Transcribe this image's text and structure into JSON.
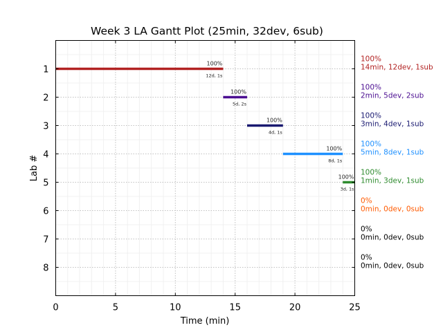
{
  "chart_data": {
    "type": "gantt",
    "title": "Week 3 LA Gantt Plot (25min, 32dev, 6sub)",
    "xlabel": "Time (min)",
    "ylabel": "Lab #",
    "xlim": [
      0,
      25
    ],
    "ylim": [
      9,
      0
    ],
    "xticks": [
      0,
      5,
      10,
      15,
      20,
      25
    ],
    "yticks": [
      1,
      2,
      3,
      4,
      5,
      6,
      7,
      8
    ],
    "grid": true,
    "bars": [
      {
        "lab": 1,
        "start": 0,
        "end": 14,
        "color": "#b22222",
        "pct": "100%",
        "detail": "12d, 1s",
        "summary_pct": "100%",
        "summary": "14min, 12dev, 1sub"
      },
      {
        "lab": 2,
        "start": 14,
        "end": 16,
        "color": "#4b0e91",
        "pct": "100%",
        "detail": "5d, 2s",
        "summary_pct": "100%",
        "summary": "2min, 5dev, 2sub"
      },
      {
        "lab": 3,
        "start": 16,
        "end": 19,
        "color": "#191970",
        "pct": "100%",
        "detail": "4d, 1s",
        "summary_pct": "100%",
        "summary": "3min, 4dev, 1sub"
      },
      {
        "lab": 4,
        "start": 19,
        "end": 24,
        "color": "#1e90ff",
        "pct": "100%",
        "detail": "8d, 1s",
        "summary_pct": "100%",
        "summary": "5min, 8dev, 1sub"
      },
      {
        "lab": 5,
        "start": 24,
        "end": 25,
        "color": "#2e8b2e",
        "pct": "100%",
        "detail": "3d, 1s",
        "summary_pct": "100%",
        "summary": "1min, 3dev, 1sub"
      },
      {
        "lab": 6,
        "start": null,
        "end": null,
        "color": "#ff5a00",
        "summary_pct": "0%",
        "summary": "0min, 0dev, 0sub"
      },
      {
        "lab": 7,
        "start": null,
        "end": null,
        "color": "#000000",
        "summary_pct": "0%",
        "summary": "0min, 0dev, 0sub"
      },
      {
        "lab": 8,
        "start": null,
        "end": null,
        "color": "#000000",
        "summary_pct": "0%",
        "summary": "0min, 0dev, 0sub"
      }
    ]
  }
}
